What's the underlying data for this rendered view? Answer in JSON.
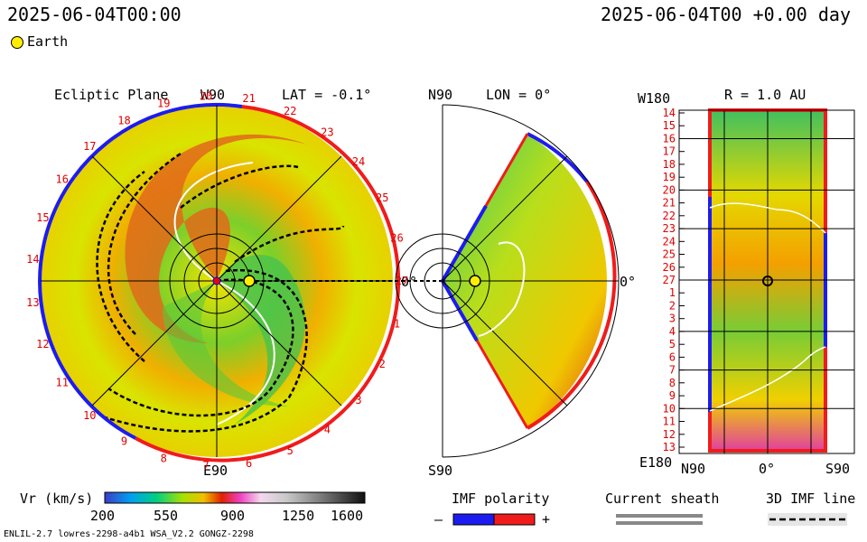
{
  "header": {
    "timestamp_left": "2025-06-04T00:00",
    "timestamp_right": "2025-06-04T00 +0.00 day",
    "legend_earth": "Earth"
  },
  "panels": {
    "ecliptic": {
      "title": "Ecliptic Plane",
      "top_label": "W90",
      "lat_label": "LAT = -0.1°",
      "bottom_label": "E90",
      "right_label": "0°"
    },
    "meridional": {
      "top_label": "N90",
      "lon_label": "LON = 0°",
      "bottom_label": "S90",
      "right_label": "0°"
    },
    "radial": {
      "top_label": "W180",
      "r_label": "R = 1.0 AU",
      "bottom_left": "E180",
      "x_left": "N90",
      "x_mid": "0°",
      "x_right": "S90"
    }
  },
  "colorbar": {
    "label": "Vr (km/s)",
    "ticks": [
      "200",
      "550",
      "900",
      "1250",
      "1600"
    ]
  },
  "imf": {
    "title": "IMF polarity",
    "minus": "–",
    "plus": "+"
  },
  "sheath": {
    "title": "Current sheath"
  },
  "imf3d": {
    "title": "3D IMF line"
  },
  "footer": {
    "model": "ENLIL-2.7 lowres-2298-a4b1 WSA_V2.2 GONGZ-2298"
  },
  "chart_data": {
    "type": "heatmap",
    "variable": "Vr (km/s)",
    "vmin": 200,
    "vmax": 1600,
    "ecliptic_sector_ticks": [
      "1",
      "2",
      "3",
      "4",
      "5",
      "6",
      "7",
      "8",
      "9",
      "10",
      "11",
      "12",
      "13",
      "14",
      "15",
      "16",
      "17",
      "18",
      "19",
      "20",
      "21",
      "22",
      "23",
      "24",
      "25",
      "26",
      "27"
    ],
    "radial_y_ticks": [
      "14",
      "15",
      "16",
      "17",
      "18",
      "19",
      "20",
      "21",
      "22",
      "23",
      "24",
      "25",
      "26",
      "27",
      "1",
      "2",
      "3",
      "4",
      "5",
      "6",
      "7",
      "8",
      "9",
      "10",
      "11",
      "12",
      "13"
    ]
  }
}
